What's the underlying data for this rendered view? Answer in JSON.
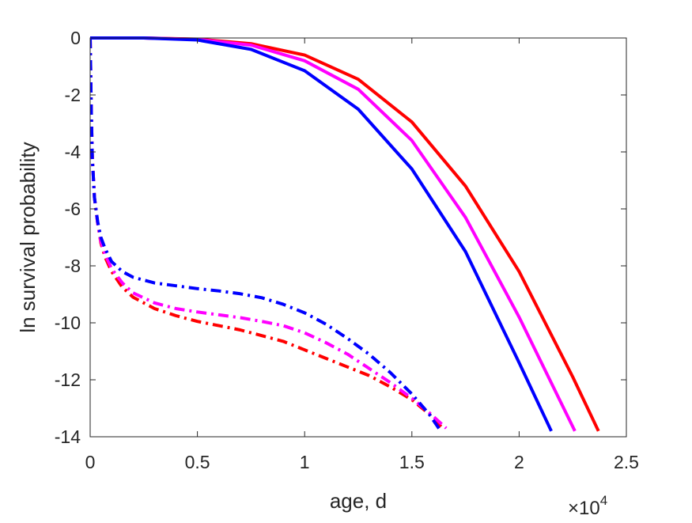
{
  "chart_data": {
    "type": "line",
    "title": "",
    "xlabel": "age, d",
    "ylabel": "ln survival probability",
    "x_exponent_label": "×10",
    "x_exponent_power": "4",
    "xlim": [
      0,
      25000
    ],
    "ylim": [
      -14,
      0
    ],
    "xticks": [
      0,
      5000,
      10000,
      15000,
      20000,
      25000
    ],
    "xtick_labels": [
      "0",
      "0.5",
      "1",
      "1.5",
      "2",
      "2.5"
    ],
    "yticks": [
      0,
      -2,
      -4,
      -6,
      -8,
      -10,
      -12,
      -14
    ],
    "ytick_labels": [
      "0",
      "-2",
      "-4",
      "-6",
      "-8",
      "-10",
      "-12",
      "-14"
    ],
    "grid": false,
    "legend": "none",
    "series": [
      {
        "style": "solid",
        "color": "#ff0000",
        "x": [
          0,
          2500,
          5000,
          7500,
          10000,
          12500,
          15000,
          17500,
          20000,
          22500,
          23700
        ],
        "y": [
          0,
          0,
          -0.04,
          -0.2,
          -0.6,
          -1.45,
          -2.95,
          -5.2,
          -8.2,
          -11.9,
          -13.8
        ]
      },
      {
        "style": "solid",
        "color": "#ff00ff",
        "x": [
          0,
          2500,
          5000,
          7500,
          10000,
          12500,
          15000,
          17500,
          20000,
          22600
        ],
        "y": [
          0,
          0,
          -0.05,
          -0.25,
          -0.8,
          -1.8,
          -3.6,
          -6.3,
          -9.8,
          -13.8
        ]
      },
      {
        "style": "solid",
        "color": "#0000ff",
        "x": [
          0,
          2500,
          5000,
          7500,
          10000,
          12500,
          15000,
          17500,
          20000,
          21500
        ],
        "y": [
          0,
          0,
          -0.07,
          -0.4,
          -1.15,
          -2.5,
          -4.6,
          -7.5,
          -11.4,
          -13.8
        ]
      },
      {
        "style": "dashdot",
        "color": "#ff0000",
        "x": [
          0,
          50,
          100,
          200,
          350,
          500,
          700,
          1000,
          1500,
          2000,
          3000,
          4000,
          5000,
          6000,
          7000,
          8000,
          9000,
          10000,
          11000,
          12000,
          13000,
          14000,
          15000,
          15800,
          16500
        ],
        "y": [
          0,
          -2.5,
          -4.2,
          -5.6,
          -6.5,
          -7.2,
          -7.7,
          -8.2,
          -8.75,
          -9.1,
          -9.5,
          -9.75,
          -9.95,
          -10.1,
          -10.25,
          -10.45,
          -10.65,
          -10.95,
          -11.25,
          -11.55,
          -11.85,
          -12.25,
          -12.7,
          -13.2,
          -13.75
        ]
      },
      {
        "style": "dashdot",
        "color": "#ff00ff",
        "x": [
          0,
          50,
          100,
          200,
          350,
          500,
          700,
          1000,
          1500,
          2000,
          3000,
          4000,
          5000,
          6000,
          7000,
          8000,
          9000,
          10000,
          11000,
          12000,
          13000,
          14000,
          15000,
          15800,
          16600
        ],
        "y": [
          0,
          -2.5,
          -4.2,
          -5.6,
          -6.5,
          -7.15,
          -7.6,
          -8.1,
          -8.6,
          -8.95,
          -9.3,
          -9.5,
          -9.62,
          -9.72,
          -9.82,
          -9.95,
          -10.1,
          -10.35,
          -10.7,
          -11.1,
          -11.6,
          -12.1,
          -12.65,
          -13.15,
          -13.7
        ]
      },
      {
        "style": "dashdot",
        "color": "#0000ff",
        "x": [
          0,
          50,
          100,
          200,
          350,
          500,
          700,
          1000,
          1500,
          2000,
          3000,
          4000,
          5000,
          6000,
          7000,
          8000,
          9000,
          10000,
          11000,
          12000,
          13000,
          14000,
          15000,
          15800,
          16300
        ],
        "y": [
          0,
          -2.5,
          -4.2,
          -5.6,
          -6.45,
          -7.0,
          -7.4,
          -7.85,
          -8.2,
          -8.4,
          -8.6,
          -8.7,
          -8.8,
          -8.88,
          -8.98,
          -9.12,
          -9.35,
          -9.65,
          -10.05,
          -10.55,
          -11.1,
          -11.75,
          -12.5,
          -13.2,
          -13.75
        ]
      }
    ]
  }
}
